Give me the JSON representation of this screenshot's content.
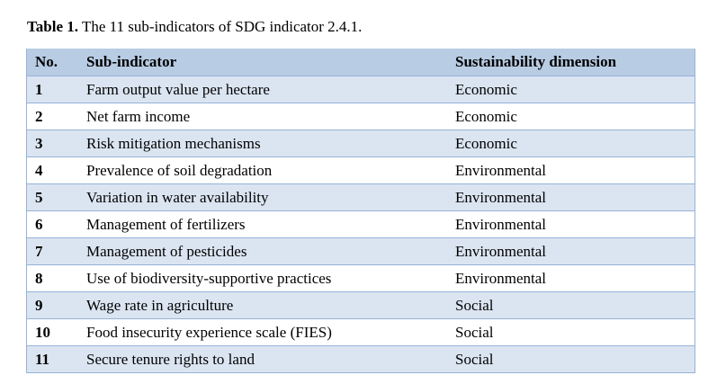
{
  "caption": {
    "label": "Table 1.",
    "text": "The 11 sub-indicators of SDG indicator 2.4.1."
  },
  "table": {
    "headers": [
      "No.",
      "Sub-indicator",
      "Sustainability dimension"
    ],
    "rows": [
      [
        "1",
        "Farm output value per hectare",
        "Economic"
      ],
      [
        "2",
        "Net farm income",
        "Economic"
      ],
      [
        "3",
        "Risk mitigation mechanisms",
        "Economic"
      ],
      [
        "4",
        "Prevalence of soil degradation",
        "Environmental"
      ],
      [
        "5",
        "Variation in water availability",
        "Environmental"
      ],
      [
        "6",
        "Management of fertilizers",
        "Environmental"
      ],
      [
        "7",
        "Management of pesticides",
        "Environmental"
      ],
      [
        "8",
        "Use of biodiversity-supportive practices",
        "Environmental"
      ],
      [
        "9",
        "Wage rate in agriculture",
        "Social"
      ],
      [
        "10",
        "Food insecurity experience scale (FIES)",
        "Social"
      ],
      [
        "11",
        "Secure tenure rights to land",
        "Social"
      ]
    ]
  },
  "colors": {
    "header_bg": "#b8cce4",
    "row_alt_bg": "#dbe5f1",
    "border": "#95b3d7"
  }
}
